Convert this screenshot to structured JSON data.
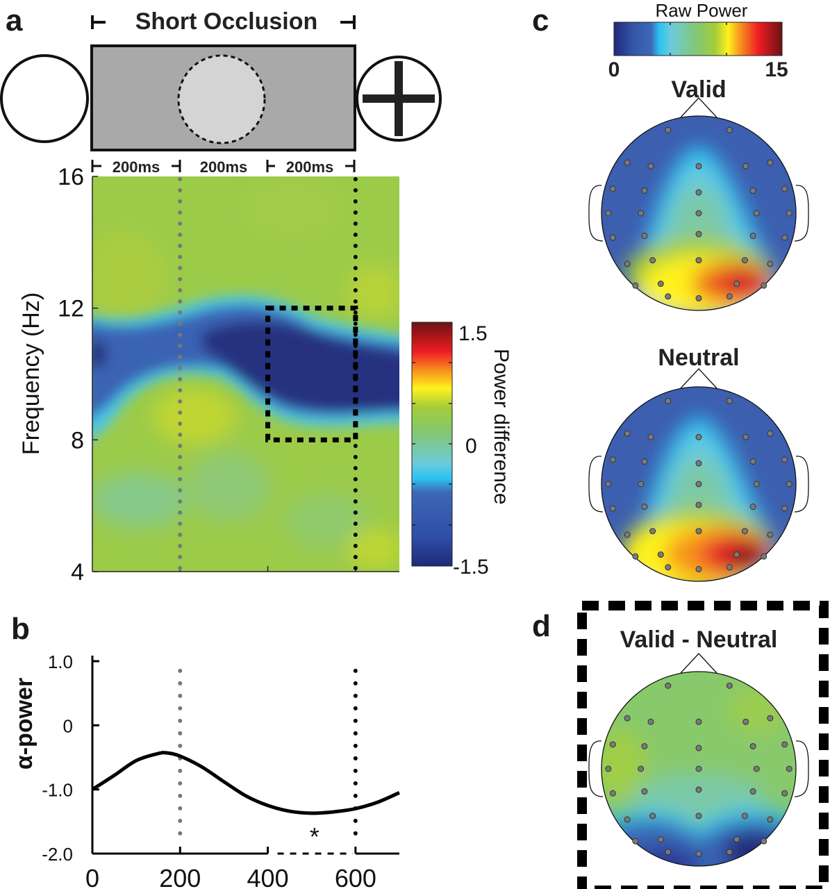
{
  "panels": {
    "a": {
      "letter": "a",
      "stimulus": {
        "title": "Short Occlusion",
        "segments": [
          "200ms",
          "200ms",
          "200ms"
        ],
        "colors": {
          "occluder": "#a9a9a9",
          "hidden_ball": "#d4d4d4"
        }
      }
    },
    "b": {
      "letter": "b",
      "significance_marker": "*"
    },
    "c": {
      "letter": "c",
      "colorbar_title": "Raw Power",
      "colorbar_min_label": "0",
      "colorbar_max_label": "15",
      "maps": [
        {
          "title": "Valid"
        },
        {
          "title": "Neutral"
        }
      ]
    },
    "d": {
      "letter": "d",
      "title": "Valid - Neutral"
    }
  },
  "chart_data": [
    {
      "id": "time-frequency",
      "type": "heatmap",
      "title": "",
      "xlabel": "",
      "ylabel": "Frequency (Hz)",
      "xlim": [
        0,
        700
      ],
      "ylim": [
        4,
        16
      ],
      "x_ticks": [
        200,
        400,
        600
      ],
      "y_ticks": [
        4,
        8,
        12,
        16
      ],
      "y_tick_labels": [
        "4",
        "8",
        "12",
        "16"
      ],
      "colorbar": {
        "label": "Power difference",
        "range": [
          -1.5,
          1.5
        ],
        "tick_labels": [
          "1.5",
          "0",
          "-1.5"
        ]
      },
      "markers": [
        {
          "x": 200,
          "style": "dotted",
          "color": "#777777"
        },
        {
          "x": 600,
          "style": "dotted",
          "color": "#000000"
        }
      ],
      "roi": {
        "x": [
          400,
          600
        ],
        "y": [
          8,
          12
        ],
        "style": "dashed"
      },
      "description": "Alpha-band (~9-12 Hz) desynchronization band, strongest between 300-700 ms (~-1.5); background near 0 to +0.5"
    },
    {
      "id": "alpha-power",
      "type": "line",
      "xlabel": "",
      "ylabel": "α-power",
      "xlim": [
        0,
        700
      ],
      "ylim": [
        -2.0,
        1.0
      ],
      "x_ticks": [
        0,
        200,
        400,
        600
      ],
      "x_tick_labels": [
        "0",
        "200",
        "400",
        "600"
      ],
      "y_ticks": [
        1.0,
        0,
        -1.0,
        -2.0
      ],
      "y_tick_labels": [
        "1.0",
        "0",
        "-1.0",
        "-2.0"
      ],
      "series": [
        {
          "name": "alpha power",
          "x": [
            0,
            50,
            100,
            150,
            170,
            200,
            250,
            300,
            350,
            400,
            450,
            500,
            550,
            600,
            650,
            700
          ],
          "y": [
            -1.0,
            -0.78,
            -0.55,
            -0.44,
            -0.43,
            -0.48,
            -0.65,
            -0.88,
            -1.1,
            -1.25,
            -1.34,
            -1.37,
            -1.35,
            -1.3,
            -1.2,
            -1.05
          ]
        }
      ],
      "significance": {
        "x": [
          400,
          600
        ],
        "label": "*"
      },
      "markers": [
        {
          "x": 200,
          "style": "dotted",
          "color": "#777777"
        },
        {
          "x": 600,
          "style": "dotted",
          "color": "#000000"
        }
      ]
    },
    {
      "id": "topo-valid",
      "type": "heatmap",
      "title": "Valid",
      "colorbar": {
        "label": "Raw Power",
        "range": [
          0,
          15
        ]
      },
      "description": "Scalp topography; peak (~12-13) over right posterior-occipital electrodes, low (~1-3) frontal/lateral"
    },
    {
      "id": "topo-neutral",
      "type": "heatmap",
      "title": "Neutral",
      "colorbar": {
        "label": "Raw Power",
        "range": [
          0,
          15
        ]
      },
      "description": "Scalp topography; peak (~14-15) over right posterior-occipital electrodes, broader occipital high power"
    },
    {
      "id": "topo-difference",
      "type": "heatmap",
      "title": "Valid - Neutral",
      "colorbar": {
        "label": "Power difference",
        "range": [
          -1.5,
          1.5
        ]
      },
      "description": "Difference topography; near 0 frontal/central, negative (~-1.2 to -1.5) over posterior electrodes, strongest right-occipital"
    }
  ]
}
